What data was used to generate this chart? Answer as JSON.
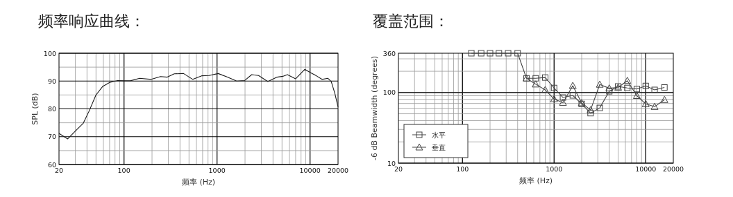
{
  "chart_data": [
    {
      "type": "line",
      "title": "频率响应曲线：",
      "xlabel": "频率 (Hz)",
      "ylabel": "SPL (dB)",
      "log": "x",
      "xlim": [
        20,
        20000
      ],
      "xticks": [
        20,
        100,
        1000,
        10000,
        20000
      ],
      "ylim": [
        60,
        100
      ],
      "yticks": [
        60,
        70,
        80,
        90,
        100
      ],
      "grid": true,
      "legend": false,
      "marker": "none",
      "line_style": "solid",
      "x": [
        20,
        24.8,
        30.6,
        36.4,
        42,
        49.8,
        59.1,
        70.2,
        85.7,
        100,
        117,
        147.5,
        196,
        247,
        292,
        347,
        437,
        549,
        690,
        819,
        1030,
        1294,
        1624,
        1986,
        2357,
        2798,
        3516,
        4418,
        5094,
        5712,
        6982,
        8770,
        10000,
        11670,
        13460,
        15530,
        16910,
        18440,
        20000
      ],
      "series": [
        {
          "color": "#1a1a1a",
          "values": [
            71.2,
            69.2,
            72.3,
            74.8,
            79.1,
            84.9,
            88.1,
            89.5,
            90.2,
            90.1,
            90.1,
            91.0,
            90.6,
            91.6,
            91.4,
            92.6,
            92.7,
            90.6,
            91.9,
            92.0,
            92.7,
            91.4,
            90.0,
            90.2,
            92.3,
            92.0,
            89.8,
            91.4,
            91.7,
            92.3,
            90.8,
            94.2,
            93.1,
            91.9,
            90.6,
            91.0,
            89.8,
            85.7,
            80.7
          ]
        }
      ]
    },
    {
      "type": "line",
      "title": "覆盖范围：",
      "xlabel": "频率 (Hz)",
      "ylabel": "-6 dB Beamwidth (degrees)",
      "log": "xy",
      "xlim": [
        20,
        20000
      ],
      "xticks": [
        20,
        100,
        1000,
        10000,
        20000
      ],
      "ylim": [
        10,
        360
      ],
      "yticks": [
        10,
        100,
        360
      ],
      "grid": true,
      "legend": "bottom left",
      "line_style": "solid",
      "series": [
        {
          "name": "水平",
          "color": "#444444",
          "marker": "square",
          "x": [
            125,
            160,
            200,
            250,
            315,
            400,
            500,
            630,
            800,
            1000,
            1250,
            1600,
            2000,
            2500,
            3150,
            4000,
            5000,
            6300,
            8000,
            10000,
            12500,
            16000
          ],
          "values": [
            360,
            360,
            360,
            360,
            360,
            360,
            159,
            159,
            163,
            116,
            85,
            91,
            69,
            51,
            60.5,
            104,
            122,
            116,
            112,
            124,
            109,
            118
          ]
        },
        {
          "name": "垂直",
          "color": "#444444",
          "marker": "triangle",
          "x": [
            500,
            630,
            800,
            1000,
            1250,
            1600,
            2000,
            2500,
            3150,
            4000,
            5000,
            6300,
            8000,
            10000,
            12500,
            16000
          ],
          "values": [
            159,
            131,
            109,
            81,
            72,
            125,
            71,
            56.5,
            130,
            115,
            118,
            147,
            90,
            69,
            63,
            79
          ]
        }
      ]
    }
  ]
}
